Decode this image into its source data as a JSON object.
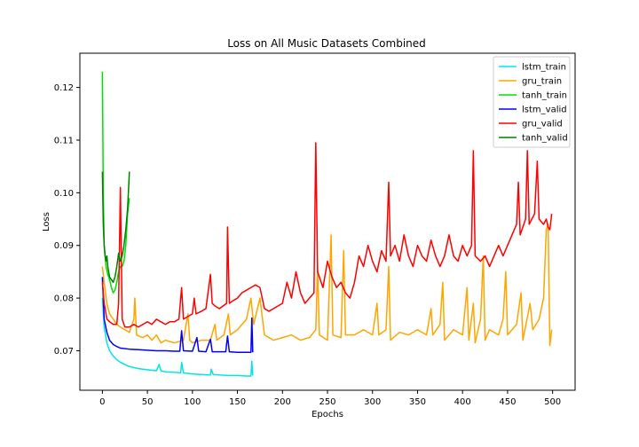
{
  "chart_data": {
    "type": "line",
    "title": "Loss on All Music Datasets Combined",
    "xlabel": "Epochs",
    "ylabel": "Loss",
    "xlim": [
      -25,
      525
    ],
    "ylim": [
      0.0625,
      0.1265
    ],
    "xticks": [
      0,
      50,
      100,
      150,
      200,
      250,
      300,
      350,
      400,
      450,
      500
    ],
    "yticks": [
      0.07,
      0.08,
      0.09,
      0.1,
      0.11,
      0.12
    ],
    "ytick_labels": [
      "0.07",
      "0.08",
      "0.09",
      "0.10",
      "0.11",
      "0.12"
    ],
    "grid": false,
    "legend_position": "top-right",
    "series": [
      {
        "name": "lstm_train",
        "color": "#00e5e5",
        "points": [
          [
            0,
            0.08
          ],
          [
            2,
            0.0745
          ],
          [
            5,
            0.0715
          ],
          [
            8,
            0.07
          ],
          [
            12,
            0.069
          ],
          [
            16,
            0.0683
          ],
          [
            20,
            0.0678
          ],
          [
            25,
            0.0674
          ],
          [
            30,
            0.067
          ],
          [
            40,
            0.0666
          ],
          [
            50,
            0.0664
          ],
          [
            60,
            0.0662
          ],
          [
            63,
            0.0674
          ],
          [
            65,
            0.0662
          ],
          [
            70,
            0.066
          ],
          [
            80,
            0.0659
          ],
          [
            87,
            0.0658
          ],
          [
            88,
            0.0678
          ],
          [
            90,
            0.0658
          ],
          [
            100,
            0.0656
          ],
          [
            110,
            0.0655
          ],
          [
            120,
            0.0654
          ],
          [
            121,
            0.0665
          ],
          [
            123,
            0.0655
          ],
          [
            130,
            0.0654
          ],
          [
            140,
            0.0653
          ],
          [
            150,
            0.0653
          ],
          [
            160,
            0.0652
          ],
          [
            165,
            0.0652
          ],
          [
            166,
            0.068
          ],
          [
            167,
            0.0653
          ]
        ]
      },
      {
        "name": "gru_train",
        "color": "#ffa500",
        "points": [
          [
            0,
            0.086
          ],
          [
            2,
            0.083
          ],
          [
            5,
            0.079
          ],
          [
            8,
            0.077
          ],
          [
            12,
            0.076
          ],
          [
            16,
            0.075
          ],
          [
            20,
            0.0745
          ],
          [
            25,
            0.074
          ],
          [
            30,
            0.0735
          ],
          [
            35,
            0.076
          ],
          [
            36,
            0.08
          ],
          [
            38,
            0.073
          ],
          [
            45,
            0.0725
          ],
          [
            50,
            0.073
          ],
          [
            55,
            0.072
          ],
          [
            60,
            0.073
          ],
          [
            65,
            0.0715
          ],
          [
            70,
            0.072
          ],
          [
            80,
            0.0715
          ],
          [
            90,
            0.072
          ],
          [
            95,
            0.077
          ],
          [
            97,
            0.072
          ],
          [
            100,
            0.0715
          ],
          [
            110,
            0.072
          ],
          [
            120,
            0.072
          ],
          [
            125,
            0.075
          ],
          [
            127,
            0.072
          ],
          [
            135,
            0.073
          ],
          [
            140,
            0.077
          ],
          [
            142,
            0.073
          ],
          [
            150,
            0.074
          ],
          [
            160,
            0.076
          ],
          [
            165,
            0.08
          ],
          [
            168,
            0.075
          ],
          [
            175,
            0.08
          ],
          [
            180,
            0.073
          ],
          [
            190,
            0.072
          ],
          [
            200,
            0.0725
          ],
          [
            210,
            0.073
          ],
          [
            220,
            0.072
          ],
          [
            230,
            0.0725
          ],
          [
            237,
            0.074
          ],
          [
            239,
            0.086
          ],
          [
            241,
            0.073
          ],
          [
            250,
            0.072
          ],
          [
            254,
            0.092
          ],
          [
            256,
            0.073
          ],
          [
            265,
            0.0725
          ],
          [
            268,
            0.089
          ],
          [
            270,
            0.073
          ],
          [
            280,
            0.073
          ],
          [
            290,
            0.074
          ],
          [
            300,
            0.073
          ],
          [
            305,
            0.079
          ],
          [
            307,
            0.073
          ],
          [
            315,
            0.074
          ],
          [
            318,
            0.086
          ],
          [
            320,
            0.072
          ],
          [
            330,
            0.0735
          ],
          [
            340,
            0.073
          ],
          [
            350,
            0.074
          ],
          [
            360,
            0.073
          ],
          [
            365,
            0.078
          ],
          [
            367,
            0.073
          ],
          [
            375,
            0.075
          ],
          [
            378,
            0.083
          ],
          [
            380,
            0.072
          ],
          [
            390,
            0.074
          ],
          [
            400,
            0.073
          ],
          [
            405,
            0.082
          ],
          [
            407,
            0.072
          ],
          [
            412,
            0.079
          ],
          [
            414,
            0.0715
          ],
          [
            420,
            0.076
          ],
          [
            423,
            0.088
          ],
          [
            425,
            0.072
          ],
          [
            430,
            0.074
          ],
          [
            440,
            0.073
          ],
          [
            445,
            0.076
          ],
          [
            448,
            0.085
          ],
          [
            450,
            0.073
          ],
          [
            460,
            0.075
          ],
          [
            465,
            0.081
          ],
          [
            467,
            0.072
          ],
          [
            475,
            0.079
          ],
          [
            478,
            0.074
          ],
          [
            485,
            0.076
          ],
          [
            490,
            0.08
          ],
          [
            493,
            0.093
          ],
          [
            495,
            0.094
          ],
          [
            497,
            0.071
          ],
          [
            499,
            0.074
          ]
        ]
      },
      {
        "name": "tanh_train",
        "color": "#00e000",
        "points": [
          [
            0,
            0.123
          ],
          [
            1,
            0.1
          ],
          [
            2,
            0.09
          ],
          [
            4,
            0.086
          ],
          [
            6,
            0.0845
          ],
          [
            8,
            0.0835
          ],
          [
            10,
            0.082
          ],
          [
            12,
            0.081
          ],
          [
            14,
            0.0815
          ],
          [
            16,
            0.083
          ],
          [
            18,
            0.085
          ],
          [
            20,
            0.086
          ],
          [
            22,
            0.086
          ],
          [
            24,
            0.087
          ],
          [
            26,
            0.09
          ],
          [
            28,
            0.096
          ],
          [
            30,
            0.099
          ]
        ]
      },
      {
        "name": "lstm_valid",
        "color": "#0000ff",
        "points": [
          [
            0,
            0.084
          ],
          [
            2,
            0.076
          ],
          [
            5,
            0.0735
          ],
          [
            8,
            0.072
          ],
          [
            12,
            0.0712
          ],
          [
            16,
            0.0708
          ],
          [
            20,
            0.0705
          ],
          [
            30,
            0.0703
          ],
          [
            40,
            0.0702
          ],
          [
            50,
            0.0701
          ],
          [
            60,
            0.07
          ],
          [
            70,
            0.07
          ],
          [
            80,
            0.0699
          ],
          [
            86,
            0.0699
          ],
          [
            88,
            0.0738
          ],
          [
            90,
            0.07
          ],
          [
            100,
            0.0699
          ],
          [
            105,
            0.0725
          ],
          [
            107,
            0.0699
          ],
          [
            115,
            0.0698
          ],
          [
            120,
            0.0722
          ],
          [
            122,
            0.0698
          ],
          [
            130,
            0.0698
          ],
          [
            137,
            0.0698
          ],
          [
            139,
            0.0728
          ],
          [
            141,
            0.0698
          ],
          [
            150,
            0.0697
          ],
          [
            160,
            0.0697
          ],
          [
            165,
            0.0697
          ],
          [
            166,
            0.0762
          ],
          [
            167,
            0.0697
          ]
        ]
      },
      {
        "name": "gru_valid",
        "color": "#ff0000",
        "points": [
          [
            0,
            0.083
          ],
          [
            2,
            0.079
          ],
          [
            5,
            0.076
          ],
          [
            8,
            0.0755
          ],
          [
            12,
            0.075
          ],
          [
            16,
            0.075
          ],
          [
            18,
            0.079
          ],
          [
            20,
            0.101
          ],
          [
            22,
            0.076
          ],
          [
            25,
            0.0745
          ],
          [
            30,
            0.0745
          ],
          [
            35,
            0.075
          ],
          [
            40,
            0.0745
          ],
          [
            45,
            0.075
          ],
          [
            50,
            0.0755
          ],
          [
            55,
            0.075
          ],
          [
            60,
            0.076
          ],
          [
            65,
            0.0755
          ],
          [
            70,
            0.075
          ],
          [
            75,
            0.0755
          ],
          [
            80,
            0.0755
          ],
          [
            85,
            0.076
          ],
          [
            88,
            0.082
          ],
          [
            90,
            0.076
          ],
          [
            95,
            0.0765
          ],
          [
            100,
            0.077
          ],
          [
            102,
            0.08
          ],
          [
            104,
            0.077
          ],
          [
            110,
            0.0775
          ],
          [
            115,
            0.078
          ],
          [
            120,
            0.0845
          ],
          [
            122,
            0.079
          ],
          [
            125,
            0.0785
          ],
          [
            130,
            0.078
          ],
          [
            138,
            0.079
          ],
          [
            139,
            0.0935
          ],
          [
            141,
            0.079
          ],
          [
            145,
            0.0795
          ],
          [
            150,
            0.08
          ],
          [
            155,
            0.081
          ],
          [
            160,
            0.0815
          ],
          [
            165,
            0.082
          ],
          [
            170,
            0.0825
          ],
          [
            175,
            0.082
          ],
          [
            180,
            0.078
          ],
          [
            185,
            0.0775
          ],
          [
            190,
            0.078
          ],
          [
            200,
            0.079
          ],
          [
            205,
            0.083
          ],
          [
            210,
            0.08
          ],
          [
            215,
            0.085
          ],
          [
            220,
            0.081
          ],
          [
            225,
            0.079
          ],
          [
            230,
            0.08
          ],
          [
            235,
            0.081
          ],
          [
            237,
            0.1095
          ],
          [
            239,
            0.085
          ],
          [
            245,
            0.082
          ],
          [
            250,
            0.087
          ],
          [
            255,
            0.084
          ],
          [
            260,
            0.082
          ],
          [
            265,
            0.083
          ],
          [
            270,
            0.081
          ],
          [
            275,
            0.08
          ],
          [
            280,
            0.083
          ],
          [
            285,
            0.088
          ],
          [
            290,
            0.086
          ],
          [
            295,
            0.09
          ],
          [
            300,
            0.087
          ],
          [
            305,
            0.085
          ],
          [
            310,
            0.089
          ],
          [
            315,
            0.087
          ],
          [
            318,
            0.102
          ],
          [
            320,
            0.088
          ],
          [
            325,
            0.09
          ],
          [
            330,
            0.087
          ],
          [
            335,
            0.092
          ],
          [
            340,
            0.088
          ],
          [
            345,
            0.086
          ],
          [
            350,
            0.09
          ],
          [
            355,
            0.088
          ],
          [
            360,
            0.087
          ],
          [
            365,
            0.091
          ],
          [
            370,
            0.088
          ],
          [
            375,
            0.086
          ],
          [
            380,
            0.088
          ],
          [
            385,
            0.092
          ],
          [
            390,
            0.088
          ],
          [
            395,
            0.087
          ],
          [
            400,
            0.09
          ],
          [
            405,
            0.088
          ],
          [
            410,
            0.09
          ],
          [
            412,
            0.108
          ],
          [
            414,
            0.088
          ],
          [
            420,
            0.087
          ],
          [
            425,
            0.088
          ],
          [
            430,
            0.086
          ],
          [
            435,
            0.088
          ],
          [
            440,
            0.09
          ],
          [
            445,
            0.088
          ],
          [
            450,
            0.09
          ],
          [
            455,
            0.092
          ],
          [
            460,
            0.094
          ],
          [
            462,
            0.102
          ],
          [
            464,
            0.092
          ],
          [
            470,
            0.095
          ],
          [
            472,
            0.108
          ],
          [
            474,
            0.094
          ],
          [
            480,
            0.096
          ],
          [
            483,
            0.106
          ],
          [
            485,
            0.095
          ],
          [
            490,
            0.094
          ],
          [
            493,
            0.095
          ],
          [
            495,
            0.0935
          ],
          [
            497,
            0.093
          ],
          [
            499,
            0.096
          ]
        ]
      },
      {
        "name": "tanh_valid",
        "color": "#008000",
        "points": [
          [
            0,
            0.104
          ],
          [
            1,
            0.094
          ],
          [
            2,
            0.09
          ],
          [
            3,
            0.088
          ],
          [
            4,
            0.087
          ],
          [
            5,
            0.088
          ],
          [
            6,
            0.086
          ],
          [
            7,
            0.085
          ],
          [
            8,
            0.084
          ],
          [
            10,
            0.0835
          ],
          [
            12,
            0.083
          ],
          [
            14,
            0.084
          ],
          [
            16,
            0.086
          ],
          [
            18,
            0.0885
          ],
          [
            20,
            0.087
          ],
          [
            22,
            0.088
          ],
          [
            24,
            0.09
          ],
          [
            26,
            0.093
          ],
          [
            28,
            0.097
          ],
          [
            30,
            0.104
          ]
        ]
      }
    ]
  }
}
